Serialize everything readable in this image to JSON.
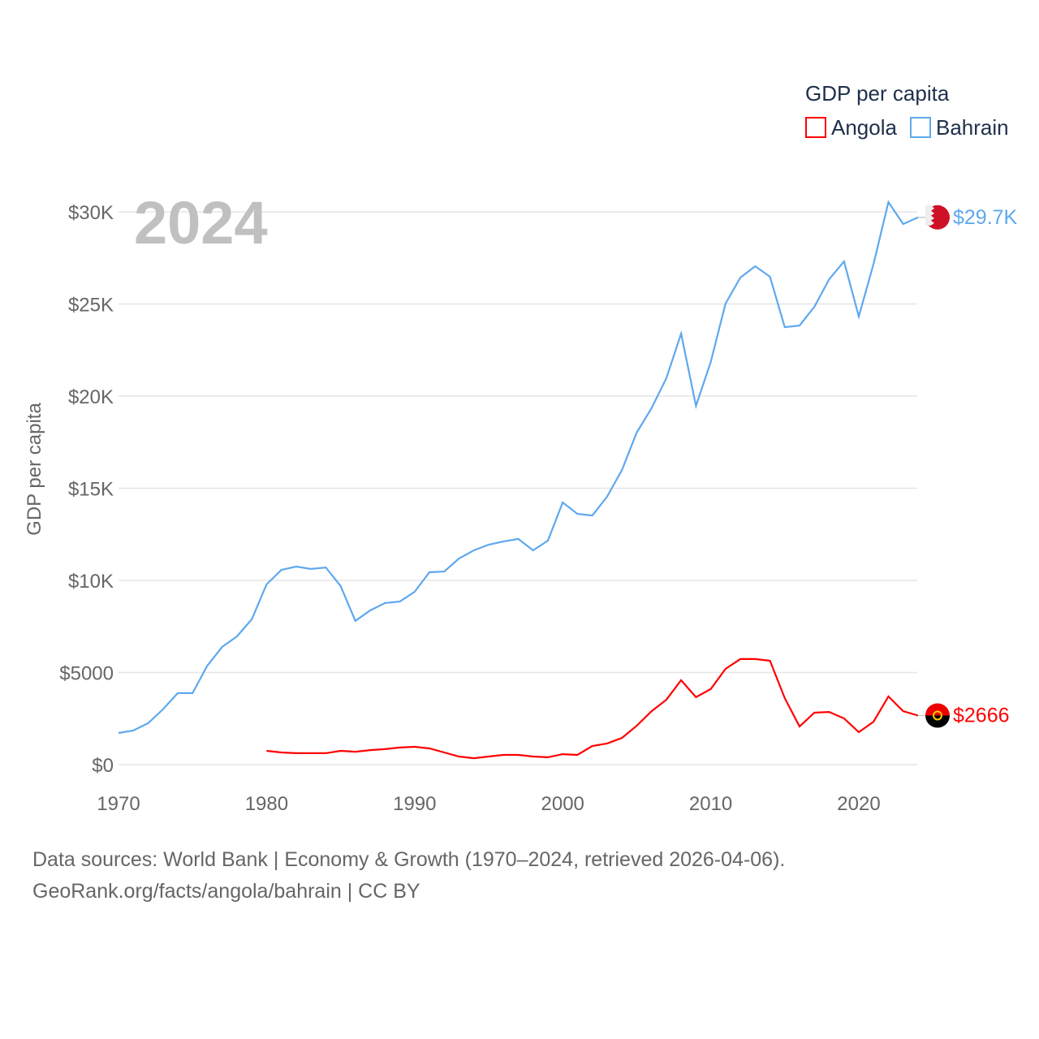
{
  "chart_data": {
    "type": "line",
    "title": "GDP per capita",
    "year_label": "2024",
    "xlabel": "",
    "ylabel": "GDP per capita",
    "xlim": [
      1970,
      2024
    ],
    "ylim": [
      0,
      30000
    ],
    "x_ticks": [
      1970,
      1980,
      1990,
      2000,
      2010,
      2020
    ],
    "y_ticks": [
      {
        "value": 0,
        "label": "$0"
      },
      {
        "value": 5000,
        "label": "$5000"
      },
      {
        "value": 10000,
        "label": "$10K"
      },
      {
        "value": 15000,
        "label": "$15K"
      },
      {
        "value": 20000,
        "label": "$20K"
      },
      {
        "value": 25000,
        "label": "$25K"
      },
      {
        "value": 30000,
        "label": "$30K"
      }
    ],
    "grid": true,
    "legend_placement": "top-right",
    "series": [
      {
        "name": "Angola",
        "color": "#ff0000",
        "end_label": "$2666",
        "start_year": 1980,
        "values": [
          750,
          660,
          620,
          620,
          620,
          750,
          700,
          790,
          840,
          930,
          970,
          880,
          660,
          440,
          350,
          440,
          530,
          530,
          440,
          400,
          570,
          530,
          1010,
          1150,
          1450,
          2110,
          2900,
          3520,
          4580,
          3660,
          4100,
          5200,
          5730,
          5730,
          5640,
          3610,
          2070,
          2820,
          2860,
          2510,
          1760,
          2330,
          3700,
          2900,
          2666
        ]
      },
      {
        "name": "Bahrain",
        "color": "#5ea8ee",
        "end_label": "$29.7K",
        "start_year": 1970,
        "values": [
          1720,
          1850,
          2250,
          3000,
          3880,
          3880,
          5370,
          6390,
          6960,
          7890,
          9780,
          10570,
          10750,
          10620,
          10700,
          9690,
          7800,
          8370,
          8770,
          8850,
          9380,
          10440,
          10480,
          11190,
          11630,
          11940,
          12110,
          12250,
          11630,
          12160,
          14230,
          13610,
          13520,
          14540,
          15990,
          18020,
          19340,
          20970,
          23390,
          19470,
          21850,
          25020,
          26430,
          27050,
          26480,
          23740,
          23830,
          24850,
          26340,
          27310,
          24320,
          27180,
          30530,
          29340,
          29700
        ]
      }
    ]
  },
  "footer": {
    "line1": "Data sources: World Bank | Economy & Growth (1970–2024, retrieved 2026-04-06).",
    "line2": "GeoRank.org/facts/angola/bahrain | CC BY"
  }
}
